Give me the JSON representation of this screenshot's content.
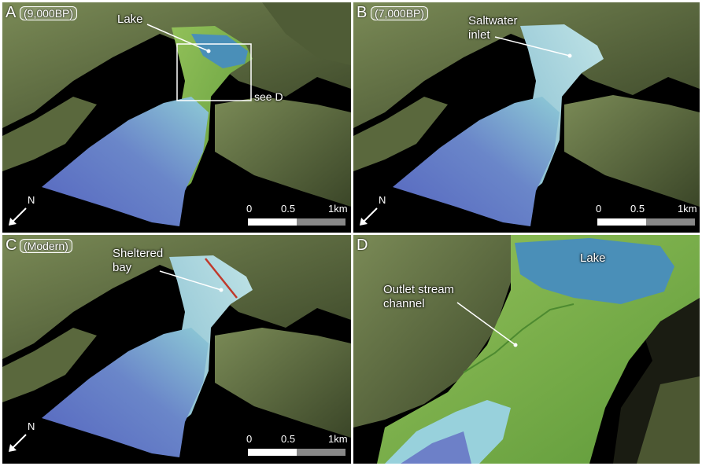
{
  "panels": {
    "A": {
      "letter": "A",
      "period": "(9,000BP)",
      "lake_label": "Lake",
      "inset_label": "see D",
      "scale": {
        "t0": "0",
        "t1": "0.5",
        "t2": "1km"
      },
      "north": "N"
    },
    "B": {
      "letter": "B",
      "period": "(7,000BP)",
      "label_line1": "Saltwater",
      "label_line2": "inlet",
      "scale": {
        "t0": "0",
        "t1": "0.5",
        "t2": "1km"
      },
      "north": "N"
    },
    "C": {
      "letter": "C",
      "period": "(Modern)",
      "label_line1": "Sheltered",
      "label_line2": "bay",
      "scale": {
        "t0": "0",
        "t1": "0.5",
        "t2": "1km"
      },
      "north": "N"
    },
    "D": {
      "letter": "D",
      "lake_label": "Lake",
      "label_line1": "Outlet stream",
      "label_line2": "channel"
    }
  },
  "colors": {
    "terrain_dark": "#3f4a2c",
    "terrain_light": "#6f7f4c",
    "lowland_green": "#79b049",
    "basin_blue_deep": "#5a6cc0",
    "basin_blue_light": "#8fc6d8",
    "lake_blue": "#4a8fb8",
    "marker_red": "#c0392b"
  }
}
